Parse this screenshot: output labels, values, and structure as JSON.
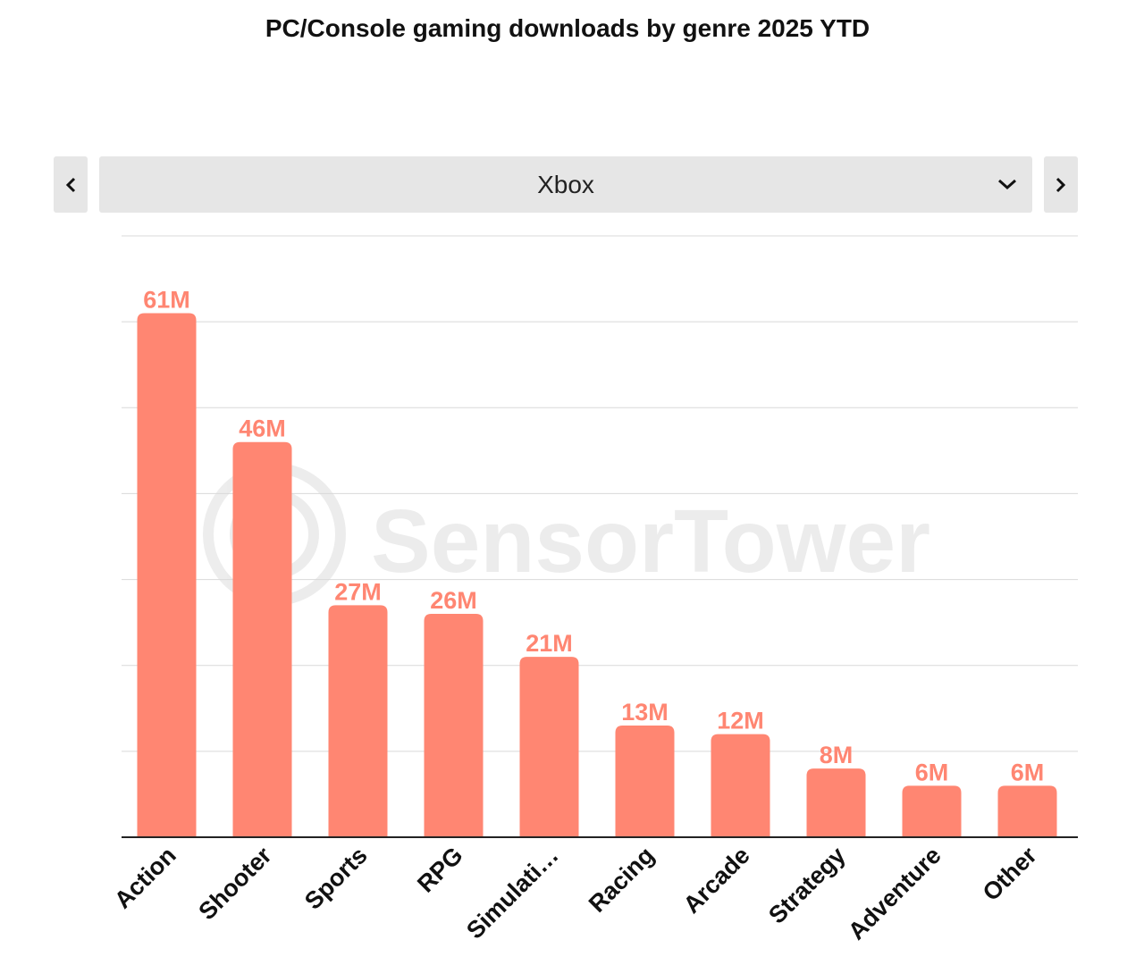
{
  "header": {
    "title": "PC/Console gaming downloads by genre 2025 YTD"
  },
  "selector": {
    "selected": "Xbox",
    "prev_icon": "chevron-left-icon",
    "next_icon": "chevron-right-icon",
    "dropdown_icon": "chevron-down-icon"
  },
  "watermark": {
    "text": "SensorTower"
  },
  "colors": {
    "bar": "#ff8672",
    "label": "#ff8672",
    "grid": "#d9d9d9",
    "axis": "#222222"
  },
  "chart_data": {
    "type": "bar",
    "title": "PC/Console gaming downloads by genre 2025 YTD",
    "categories": [
      "Action",
      "Shooter",
      "Sports",
      "RPG",
      "Simulati…",
      "Racing",
      "Arcade",
      "Strategy",
      "Adventure",
      "Other"
    ],
    "values": [
      61,
      46,
      27,
      26,
      21,
      13,
      12,
      8,
      6,
      6
    ],
    "labels": [
      "61M",
      "46M",
      "27M",
      "26M",
      "21M",
      "13M",
      "12M",
      "8M",
      "6M",
      "6M"
    ],
    "ylim": [
      0,
      70
    ],
    "ytick_step": 10,
    "grid": true,
    "xlabel": "",
    "ylabel": ""
  }
}
